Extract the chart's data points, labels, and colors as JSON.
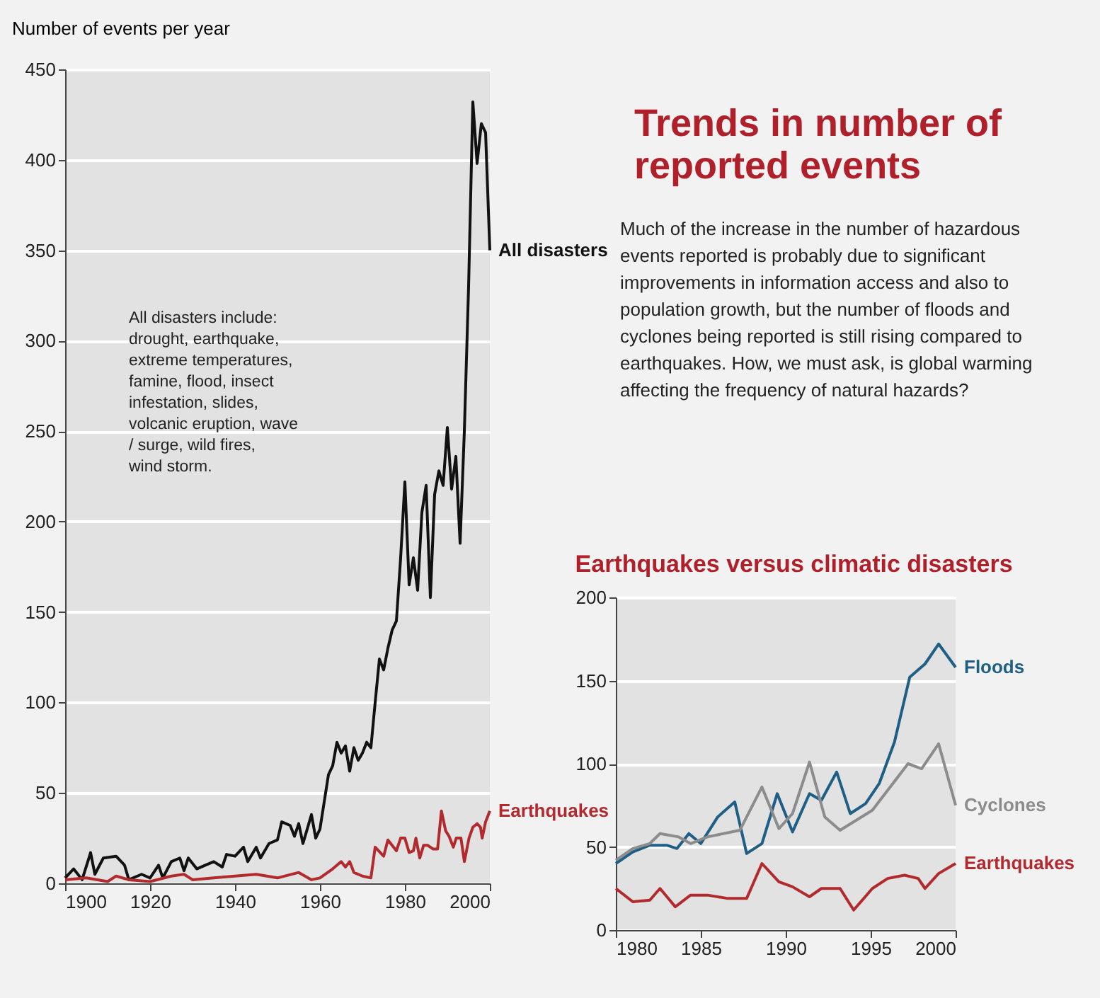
{
  "chart_data": [
    {
      "type": "line",
      "ylabel": "Number of events per year",
      "annotations": [
        "All disasters include: drought, earthquake, extreme temperatures, famine, flood, insect infestation, slides, volcanic eruption, wave / surge, wild fires, wind storm."
      ],
      "xlim": [
        1900,
        2000
      ],
      "xticks": [
        1900,
        1920,
        1940,
        1960,
        1980,
        2000
      ],
      "ylim": [
        0,
        450
      ],
      "yticks": [
        0,
        50,
        100,
        150,
        200,
        250,
        300,
        350,
        400,
        450
      ],
      "grid": "y",
      "series": [
        {
          "name": "All disasters",
          "color": "#111111",
          "x": [
            1900,
            1902,
            1904,
            1906,
            1907,
            1909,
            1912,
            1914,
            1915,
            1918,
            1920,
            1922,
            1923,
            1925,
            1927,
            1928,
            1929,
            1931,
            1933,
            1935,
            1937,
            1938,
            1940,
            1942,
            1943,
            1945,
            1946,
            1948,
            1950,
            1951,
            1953,
            1954,
            1955,
            1956,
            1957,
            1958,
            1959,
            1960,
            1961,
            1962,
            1963,
            1964,
            1965,
            1966,
            1967,
            1968,
            1969,
            1970,
            1971,
            1972,
            1973,
            1974,
            1975,
            1976,
            1977,
            1978,
            1979,
            1980,
            1981,
            1982,
            1983,
            1984,
            1985,
            1986,
            1987,
            1988,
            1989,
            1990,
            1991,
            1992,
            1993,
            1994,
            1995,
            1996,
            1997,
            1998,
            1999,
            2000
          ],
          "values": [
            3,
            8,
            2,
            17,
            5,
            14,
            15,
            10,
            2,
            5,
            3,
            10,
            3,
            12,
            14,
            7,
            14,
            8,
            10,
            12,
            9,
            16,
            15,
            20,
            12,
            20,
            14,
            22,
            24,
            34,
            32,
            26,
            33,
            22,
            30,
            38,
            25,
            30,
            45,
            60,
            65,
            78,
            72,
            76,
            62,
            75,
            68,
            72,
            78,
            75,
            100,
            124,
            118,
            130,
            140,
            145,
            180,
            222,
            165,
            180,
            162,
            205,
            220,
            158,
            215,
            228,
            220,
            252,
            218,
            236,
            188,
            250,
            330,
            432,
            398,
            420,
            415,
            350
          ]
        },
        {
          "name": "Earthquakes",
          "color": "#b22a2e",
          "x": [
            1900,
            1905,
            1910,
            1912,
            1915,
            1920,
            1925,
            1928,
            1930,
            1935,
            1940,
            1945,
            1950,
            1955,
            1958,
            1960,
            1963,
            1965,
            1966,
            1967,
            1968,
            1970,
            1972,
            1973,
            1975,
            1976,
            1978,
            1979,
            1980,
            1981,
            1982,
            1982.6,
            1983.5,
            1984.4,
            1985.4,
            1986.6,
            1987.7,
            1988.6,
            1989.6,
            1990.4,
            1991.4,
            1992.1,
            1993.2,
            1994,
            1995.1,
            1996,
            1997,
            1997.8,
            1998.2,
            1999,
            2000
          ],
          "values": [
            2,
            3,
            1,
            4,
            2,
            1,
            4,
            5,
            2,
            3,
            4,
            5,
            3,
            6,
            2,
            3,
            8,
            12,
            9,
            12,
            6,
            4,
            3,
            20,
            15,
            24,
            18,
            25,
            25,
            17,
            18,
            25,
            14,
            21,
            21,
            19,
            19,
            40,
            29,
            26,
            20,
            25,
            25,
            12,
            25,
            31,
            33,
            31,
            25,
            34,
            40
          ]
        }
      ]
    },
    {
      "type": "other",
      "title": "Trends in number of reported events",
      "annotations": [
        "Much of the increase in the number of hazardous events reported is probably due to significant improvements in information access and also to population growth, but the number of floods and cyclones being reported is still rising compared to earthquakes. How, we must ask, is global warming affecting the frequency of natural hazards?"
      ]
    },
    {
      "type": "line",
      "title": "Earthquakes versus climatic disasters",
      "xlim": [
        1980,
        2000
      ],
      "xticks": [
        1980,
        1985,
        1990,
        1995,
        2000
      ],
      "ylim": [
        0,
        200
      ],
      "yticks": [
        0,
        50,
        100,
        150,
        200
      ],
      "grid": "y",
      "series": [
        {
          "name": "Floods",
          "color": "#1f5f85",
          "x": [
            1980,
            1981,
            1982,
            1983,
            1983.6,
            1984.3,
            1985,
            1986,
            1987,
            1987.7,
            1988.6,
            1989.5,
            1990.4,
            1991.4,
            1992.1,
            1993,
            1993.8,
            1994.7,
            1995.5,
            1996.4,
            1997.3,
            1998.2,
            1999,
            2000
          ],
          "values": [
            40,
            47,
            51,
            51,
            49,
            58,
            52,
            68,
            77,
            46,
            52,
            82,
            59,
            82,
            78,
            95,
            70,
            76,
            88,
            113,
            152,
            160,
            172,
            158
          ]
        },
        {
          "name": "Cyclones",
          "color": "#8c8c8c",
          "x": [
            1980,
            1981,
            1982,
            1982.6,
            1983.7,
            1984.4,
            1985.4,
            1987.3,
            1988.6,
            1989.6,
            1990.4,
            1991.4,
            1992.3,
            1993.2,
            1995.1,
            1997.2,
            1998,
            1999,
            2000
          ],
          "values": [
            42,
            49,
            52,
            58,
            56,
            52,
            56,
            60,
            86,
            61,
            70,
            101,
            68,
            60,
            72,
            100,
            97,
            112,
            75
          ]
        },
        {
          "name": "Earthquakes",
          "color": "#b22a2e",
          "x": [
            1980,
            1981,
            1982,
            1982.6,
            1983.5,
            1984.4,
            1985.4,
            1986.6,
            1987.7,
            1988.6,
            1989.6,
            1990.4,
            1991.4,
            1992.1,
            1993.2,
            1994,
            1995.1,
            1996,
            1997,
            1997.8,
            1998.2,
            1999,
            2000
          ],
          "values": [
            25,
            17,
            18,
            25,
            14,
            21,
            21,
            19,
            19,
            40,
            29,
            26,
            20,
            25,
            25,
            12,
            25,
            31,
            33,
            31,
            25,
            34,
            40
          ]
        }
      ]
    }
  ]
}
